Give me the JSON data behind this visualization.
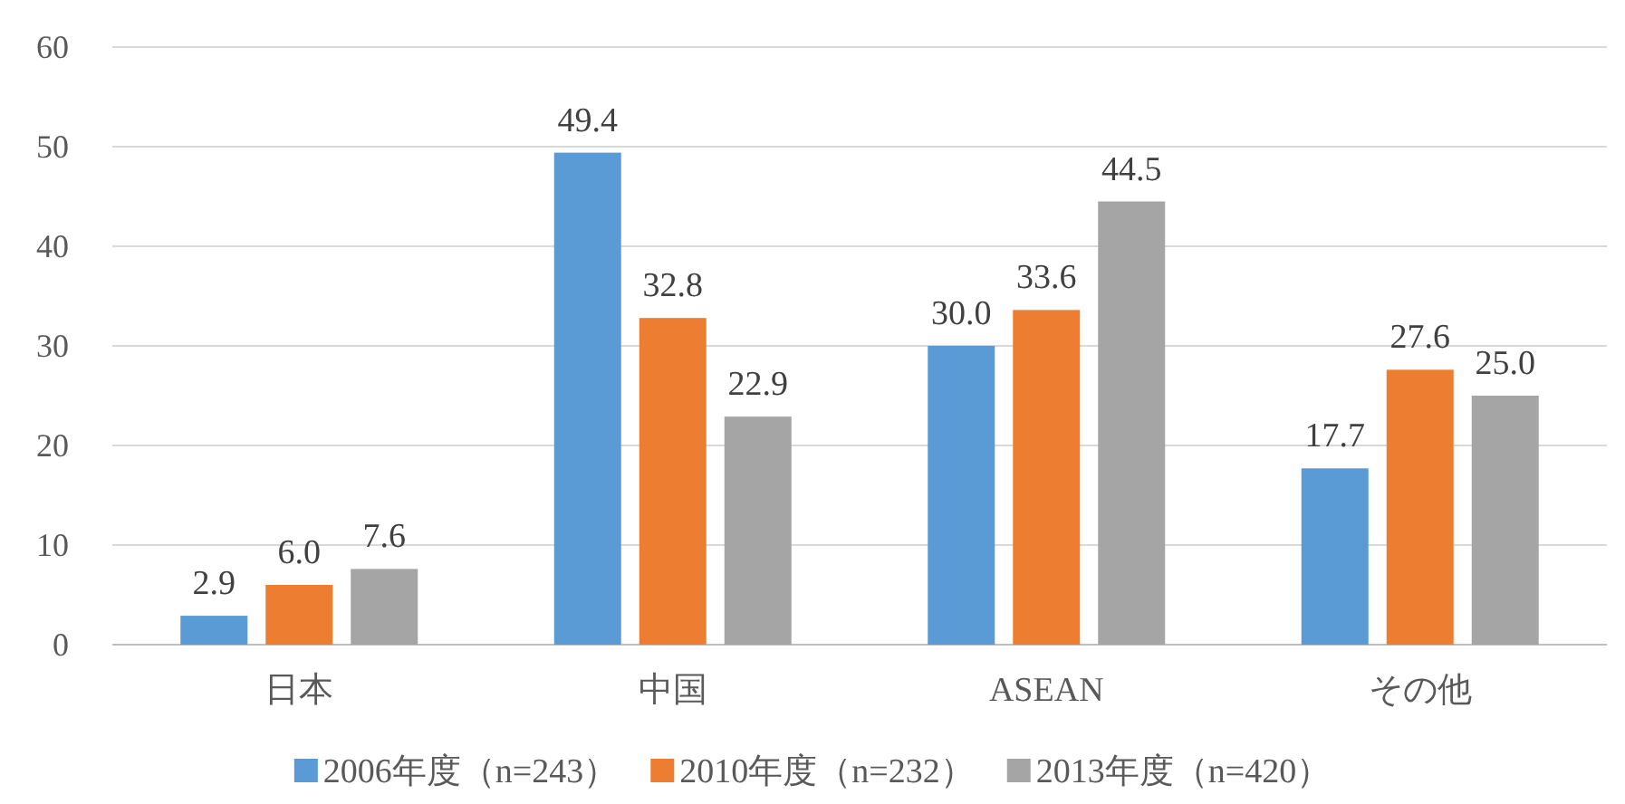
{
  "chart_data": {
    "type": "bar",
    "categories": [
      "日本",
      "中国",
      "ASEAN",
      "その他"
    ],
    "series": [
      {
        "name": "2006年度（n=243）",
        "color": "#5b9bd5",
        "values": [
          2.9,
          49.4,
          30.0,
          17.7
        ],
        "value_labels": [
          "2.9",
          "49.4",
          "30.0",
          "17.7"
        ]
      },
      {
        "name": "2010年度（n=232）",
        "color": "#ed7d31",
        "values": [
          6.0,
          32.8,
          33.6,
          27.6
        ],
        "value_labels": [
          "6.0",
          "32.8",
          "33.6",
          "27.6"
        ]
      },
      {
        "name": "2013年度（n=420）",
        "color": "#a5a5a5",
        "values": [
          7.6,
          22.9,
          44.5,
          25.0
        ],
        "value_labels": [
          "7.6",
          "22.9",
          "44.5",
          "25.0"
        ]
      }
    ],
    "ylim": [
      0,
      60
    ],
    "yticks": [
      0,
      10,
      20,
      30,
      40,
      50,
      60
    ],
    "grid": "y",
    "legend": "bottom"
  }
}
